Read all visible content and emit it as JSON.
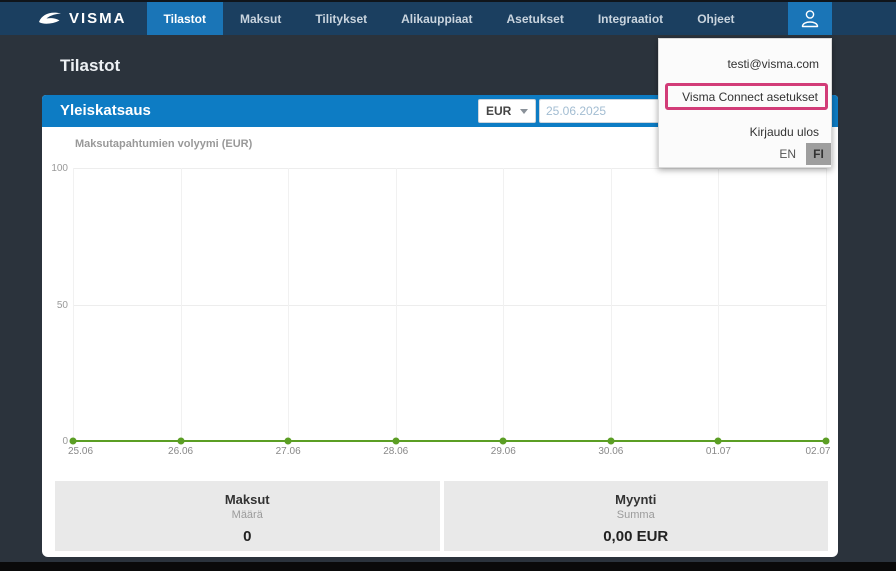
{
  "navbar": {
    "brand": "VISMA",
    "tabs": [
      {
        "label": "Tilastot",
        "active": true
      },
      {
        "label": "Maksut",
        "active": false
      },
      {
        "label": "Tilitykset",
        "active": false
      },
      {
        "label": "Alikauppiaat",
        "active": false
      },
      {
        "label": "Asetukset",
        "active": false
      },
      {
        "label": "Integraatiot",
        "active": false
      },
      {
        "label": "Ohjeet",
        "active": false
      }
    ]
  },
  "user_menu": {
    "email": "testi@visma.com",
    "connect_settings": "Visma Connect asetukset",
    "logout": "Kirjaudu ulos",
    "lang_en": "EN",
    "lang_fi": "FI",
    "selected_language": "FI",
    "highlight_color": "#d23c78"
  },
  "page": {
    "title": "Tilastot"
  },
  "overview": {
    "header": "Yleiskatsaus",
    "currency": "EUR",
    "date": "25.06.2025"
  },
  "chart_data": {
    "type": "line",
    "title": "Maksutapahtumien volyymi (EUR)",
    "x": [
      "25.06",
      "26.06",
      "27.06",
      "28.06",
      "29.06",
      "30.06",
      "01.07",
      "02.07"
    ],
    "values": [
      0,
      0,
      0,
      0,
      0,
      0,
      0,
      0
    ],
    "ylim": [
      0,
      100
    ],
    "yticks": [
      0,
      50,
      100
    ],
    "line_color": "#5b9e24",
    "grid": true,
    "legend": false
  },
  "summary": [
    {
      "title": "Maksut",
      "subtitle": "Määrä",
      "value": "0"
    },
    {
      "title": "Myynti",
      "subtitle": "Summa",
      "value": "0,00 EUR"
    }
  ],
  "colors": {
    "navbar": "#1b3f60",
    "active_tab": "#1a75b7",
    "header_bar": "#0d7cc4",
    "background": "#2b333c",
    "panel_gray": "#e9e9e9",
    "line_green": "#5b9e24",
    "annotation_pink": "#d23c78"
  }
}
